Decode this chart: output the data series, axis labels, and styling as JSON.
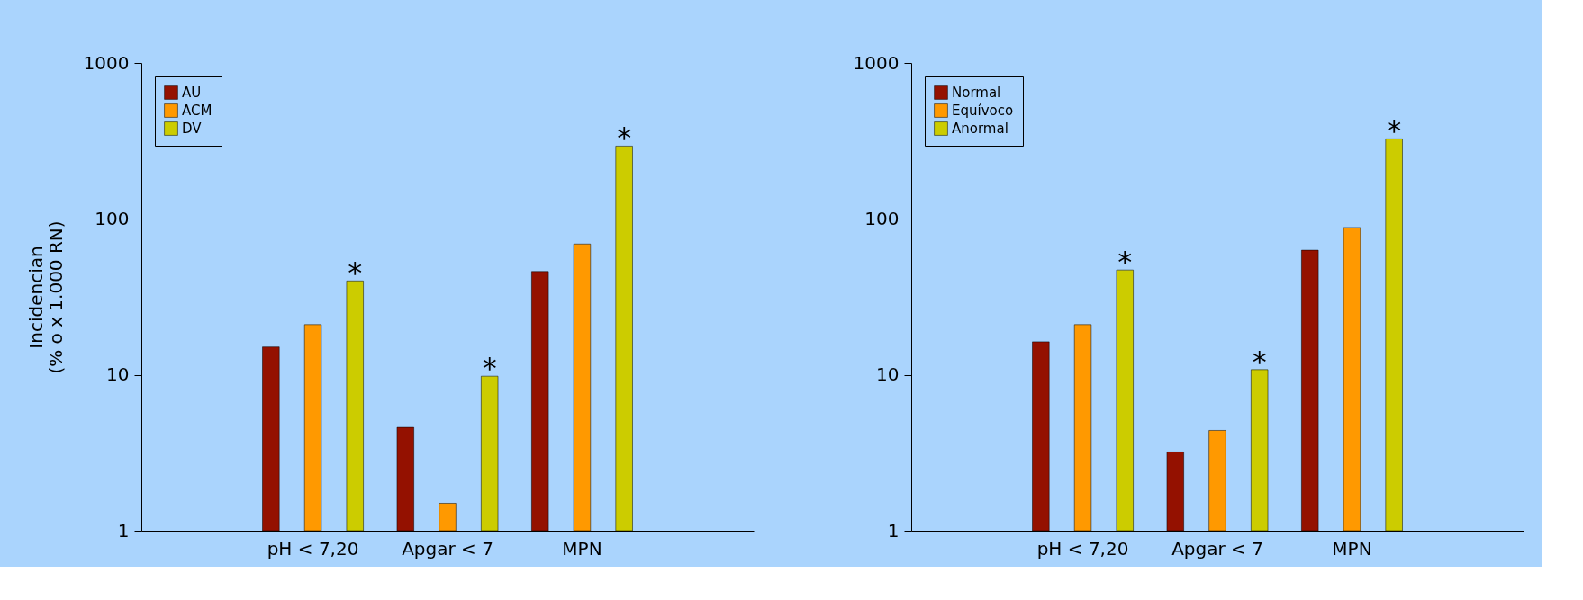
{
  "chart_data": [
    {
      "type": "bar",
      "categories": [
        "pH < 7,20",
        "Apgar < 7",
        "MPN"
      ],
      "ylabel": "Incidencian\n(% o x 1.000 RN)",
      "log": true,
      "ylim": [
        1,
        1000
      ],
      "yticks": [
        1,
        10,
        100,
        1000
      ],
      "grid": false,
      "legend": "top left",
      "series": [
        {
          "name": "AU",
          "color": "#941100",
          "values": [
            15.1,
            4.6,
            46
          ]
        },
        {
          "name": "ACM",
          "color": "#ff9900",
          "values": [
            21,
            1.5,
            69
          ]
        },
        {
          "name": "DV",
          "color": "#cccc00",
          "values": [
            40,
            9.8,
            293
          ]
        }
      ],
      "annotations": [
        "*",
        "*",
        "*"
      ]
    },
    {
      "type": "bar",
      "categories": [
        "pH < 7,20",
        "Apgar < 7",
        "MPN"
      ],
      "log": true,
      "ylim": [
        1,
        1000
      ],
      "yticks": [
        1,
        10,
        100,
        1000
      ],
      "grid": false,
      "legend": "top left",
      "series": [
        {
          "name": "Normal",
          "color": "#941100",
          "values": [
            16.3,
            3.2,
            63
          ]
        },
        {
          "name": "Equívoco",
          "color": "#ff9900",
          "values": [
            21,
            4.4,
            88
          ]
        },
        {
          "name": "Anormal",
          "color": "#cccc00",
          "values": [
            47,
            10.8,
            326
          ]
        }
      ],
      "annotations": [
        "*",
        "*",
        "*"
      ]
    }
  ]
}
